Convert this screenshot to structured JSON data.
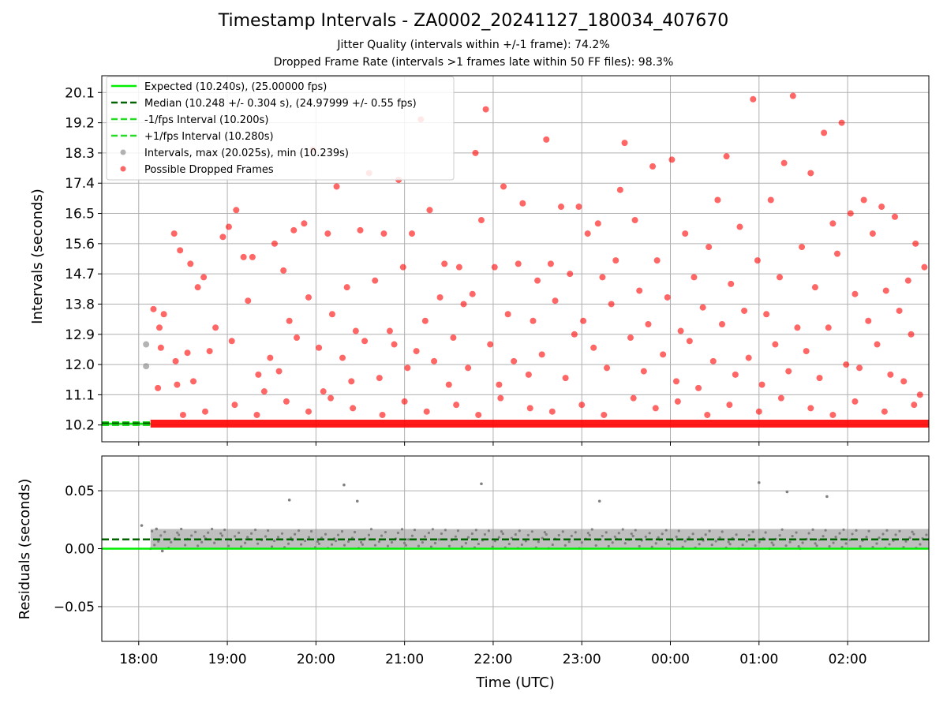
{
  "title": "Timestamp Intervals - ZA0002_20241127_180034_407670",
  "subtitle_1": "Jitter Quality (intervals within +/-1 frame): 74.2%",
  "subtitle_2": "Dropped Frame Rate (intervals >1 frames late within 50 FF files): 98.3%",
  "colors": {
    "expected": "#00ee00",
    "median": "#006400",
    "fps_band": "#22dd22",
    "intervals": "#808080",
    "dropped": "#ff0000",
    "grid": "#b0b0b0"
  },
  "chart_data": [
    {
      "type": "scatter",
      "panel": "top",
      "xlabel": "",
      "ylabel": "Intervals (seconds)",
      "xlim": [
        "17:35",
        "02:55"
      ],
      "ylim": [
        9.7,
        20.6
      ],
      "yticks": [
        "10.2",
        "11.1",
        "12.0",
        "12.9",
        "13.8",
        "14.7",
        "15.6",
        "16.5",
        "17.4",
        "18.3",
        "19.2",
        "20.1"
      ],
      "grid": true,
      "legend_position": "top-left",
      "legend": [
        {
          "label": "Expected (10.240s), (25.00000 fps)",
          "style": "solid-line",
          "color": "#00ee00"
        },
        {
          "label": "Median (10.248 +/- 0.304 s), (24.97999 +/- 0.55 fps)",
          "style": "dashed-line",
          "color": "#006400"
        },
        {
          "label": "-1/fps Interval (10.200s)",
          "style": "dashed-line",
          "color": "#22dd22"
        },
        {
          "label": "+1/fps Interval (10.280s)",
          "style": "dashed-line",
          "color": "#22dd22"
        },
        {
          "label": "Intervals, max (20.025s), min (10.239s)",
          "style": "marker",
          "color": "#808080"
        },
        {
          "label": "Possible Dropped Frames",
          "style": "marker",
          "color": "#ff0000"
        }
      ],
      "reference_lines": {
        "expected": 10.24,
        "median": 10.248,
        "minus_fps": 10.2,
        "plus_fps": 10.28
      },
      "interval_points": [
        {
          "x": "18:05",
          "y": 12.6
        },
        {
          "x": "18:05",
          "y": 11.95
        }
      ],
      "baseline_band": {
        "from": "18:08",
        "to": "02:55",
        "y": 10.24
      },
      "dropped_frames": [
        {
          "x": "18:10",
          "y": 13.65
        },
        {
          "x": "18:13",
          "y": 11.3
        },
        {
          "x": "18:14",
          "y": 13.1
        },
        {
          "x": "18:15",
          "y": 12.5
        },
        {
          "x": "18:17",
          "y": 13.5
        },
        {
          "x": "18:24",
          "y": 15.9
        },
        {
          "x": "18:25",
          "y": 12.1
        },
        {
          "x": "18:26",
          "y": 11.4
        },
        {
          "x": "18:28",
          "y": 15.4
        },
        {
          "x": "18:33",
          "y": 12.35
        },
        {
          "x": "18:35",
          "y": 15.0
        },
        {
          "x": "18:37",
          "y": 11.5
        },
        {
          "x": "18:40",
          "y": 14.3
        },
        {
          "x": "18:44",
          "y": 14.6
        },
        {
          "x": "18:48",
          "y": 12.4
        },
        {
          "x": "18:52",
          "y": 13.1
        },
        {
          "x": "18:57",
          "y": 15.8
        },
        {
          "x": "19:01",
          "y": 16.1
        },
        {
          "x": "19:03",
          "y": 12.7
        },
        {
          "x": "19:06",
          "y": 16.6
        },
        {
          "x": "19:11",
          "y": 15.2
        },
        {
          "x": "19:14",
          "y": 13.9
        },
        {
          "x": "19:17",
          "y": 15.2
        },
        {
          "x": "19:21",
          "y": 11.7
        },
        {
          "x": "19:25",
          "y": 11.2
        },
        {
          "x": "19:29",
          "y": 12.2
        },
        {
          "x": "19:32",
          "y": 15.6
        },
        {
          "x": "19:35",
          "y": 11.8
        },
        {
          "x": "19:38",
          "y": 14.8
        },
        {
          "x": "19:42",
          "y": 13.3
        },
        {
          "x": "19:45",
          "y": 16.0
        },
        {
          "x": "19:47",
          "y": 12.8
        },
        {
          "x": "19:52",
          "y": 16.2
        },
        {
          "x": "19:55",
          "y": 14.0
        },
        {
          "x": "19:58",
          "y": 18.4
        },
        {
          "x": "20:02",
          "y": 12.5
        },
        {
          "x": "20:05",
          "y": 11.2
        },
        {
          "x": "20:08",
          "y": 15.9
        },
        {
          "x": "20:11",
          "y": 13.5
        },
        {
          "x": "20:14",
          "y": 17.3
        },
        {
          "x": "20:18",
          "y": 12.2
        },
        {
          "x": "20:21",
          "y": 14.3
        },
        {
          "x": "20:24",
          "y": 11.5
        },
        {
          "x": "20:27",
          "y": 13.0
        },
        {
          "x": "20:30",
          "y": 16.0
        },
        {
          "x": "20:33",
          "y": 12.7
        },
        {
          "x": "20:36",
          "y": 17.7
        },
        {
          "x": "20:40",
          "y": 14.5
        },
        {
          "x": "20:43",
          "y": 11.6
        },
        {
          "x": "20:46",
          "y": 15.9
        },
        {
          "x": "20:50",
          "y": 13.0
        },
        {
          "x": "20:53",
          "y": 12.6
        },
        {
          "x": "20:56",
          "y": 17.5
        },
        {
          "x": "20:59",
          "y": 14.9
        },
        {
          "x": "21:02",
          "y": 11.9
        },
        {
          "x": "21:05",
          "y": 15.9
        },
        {
          "x": "21:08",
          "y": 12.4
        },
        {
          "x": "21:11",
          "y": 19.3
        },
        {
          "x": "21:14",
          "y": 13.3
        },
        {
          "x": "21:17",
          "y": 16.6
        },
        {
          "x": "21:20",
          "y": 12.1
        },
        {
          "x": "21:24",
          "y": 14.0
        },
        {
          "x": "21:27",
          "y": 15.0
        },
        {
          "x": "21:30",
          "y": 11.4
        },
        {
          "x": "21:33",
          "y": 12.8
        },
        {
          "x": "21:37",
          "y": 14.9
        },
        {
          "x": "21:40",
          "y": 13.8
        },
        {
          "x": "21:43",
          "y": 11.9
        },
        {
          "x": "21:46",
          "y": 14.1
        },
        {
          "x": "21:48",
          "y": 18.3
        },
        {
          "x": "21:52",
          "y": 16.3
        },
        {
          "x": "21:55",
          "y": 19.6
        },
        {
          "x": "21:58",
          "y": 12.6
        },
        {
          "x": "22:01",
          "y": 14.9
        },
        {
          "x": "22:04",
          "y": 11.4
        },
        {
          "x": "22:07",
          "y": 17.3
        },
        {
          "x": "22:10",
          "y": 13.5
        },
        {
          "x": "22:14",
          "y": 12.1
        },
        {
          "x": "22:17",
          "y": 15.0
        },
        {
          "x": "22:20",
          "y": 16.8
        },
        {
          "x": "22:24",
          "y": 11.7
        },
        {
          "x": "22:27",
          "y": 13.3
        },
        {
          "x": "22:30",
          "y": 14.5
        },
        {
          "x": "22:33",
          "y": 12.3
        },
        {
          "x": "22:36",
          "y": 18.7
        },
        {
          "x": "22:39",
          "y": 15.0
        },
        {
          "x": "22:42",
          "y": 13.9
        },
        {
          "x": "22:46",
          "y": 16.7
        },
        {
          "x": "22:49",
          "y": 11.6
        },
        {
          "x": "22:52",
          "y": 14.7
        },
        {
          "x": "22:55",
          "y": 12.9
        },
        {
          "x": "22:58",
          "y": 16.7
        },
        {
          "x": "23:01",
          "y": 13.3
        },
        {
          "x": "23:04",
          "y": 15.9
        },
        {
          "x": "23:08",
          "y": 12.5
        },
        {
          "x": "23:11",
          "y": 16.2
        },
        {
          "x": "23:14",
          "y": 14.6
        },
        {
          "x": "23:17",
          "y": 11.9
        },
        {
          "x": "23:20",
          "y": 13.8
        },
        {
          "x": "23:23",
          "y": 15.1
        },
        {
          "x": "23:26",
          "y": 17.2
        },
        {
          "x": "23:29",
          "y": 18.6
        },
        {
          "x": "23:33",
          "y": 12.8
        },
        {
          "x": "23:36",
          "y": 16.3
        },
        {
          "x": "23:39",
          "y": 14.2
        },
        {
          "x": "23:42",
          "y": 11.8
        },
        {
          "x": "23:45",
          "y": 13.2
        },
        {
          "x": "23:48",
          "y": 17.9
        },
        {
          "x": "23:51",
          "y": 15.1
        },
        {
          "x": "23:55",
          "y": 12.3
        },
        {
          "x": "23:58",
          "y": 14.0
        },
        {
          "x": "00:01",
          "y": 18.1
        },
        {
          "x": "00:04",
          "y": 11.5
        },
        {
          "x": "00:07",
          "y": 13.0
        },
        {
          "x": "00:10",
          "y": 15.9
        },
        {
          "x": "00:13",
          "y": 12.7
        },
        {
          "x": "00:16",
          "y": 14.6
        },
        {
          "x": "00:19",
          "y": 11.3
        },
        {
          "x": "00:22",
          "y": 13.7
        },
        {
          "x": "00:26",
          "y": 15.5
        },
        {
          "x": "00:29",
          "y": 12.1
        },
        {
          "x": "00:32",
          "y": 16.9
        },
        {
          "x": "00:35",
          "y": 13.2
        },
        {
          "x": "00:38",
          "y": 18.2
        },
        {
          "x": "00:41",
          "y": 14.4
        },
        {
          "x": "00:44",
          "y": 11.7
        },
        {
          "x": "00:47",
          "y": 16.1
        },
        {
          "x": "00:50",
          "y": 13.6
        },
        {
          "x": "00:53",
          "y": 12.2
        },
        {
          "x": "00:56",
          "y": 19.9
        },
        {
          "x": "00:59",
          "y": 15.1
        },
        {
          "x": "01:02",
          "y": 11.4
        },
        {
          "x": "01:05",
          "y": 13.5
        },
        {
          "x": "01:08",
          "y": 16.9
        },
        {
          "x": "01:11",
          "y": 12.6
        },
        {
          "x": "01:14",
          "y": 14.6
        },
        {
          "x": "01:17",
          "y": 18.0
        },
        {
          "x": "01:20",
          "y": 11.8
        },
        {
          "x": "01:23",
          "y": 20.0
        },
        {
          "x": "01:26",
          "y": 13.1
        },
        {
          "x": "01:29",
          "y": 15.5
        },
        {
          "x": "01:32",
          "y": 12.4
        },
        {
          "x": "01:35",
          "y": 17.7
        },
        {
          "x": "01:38",
          "y": 14.3
        },
        {
          "x": "01:41",
          "y": 11.6
        },
        {
          "x": "01:44",
          "y": 18.9
        },
        {
          "x": "01:47",
          "y": 13.1
        },
        {
          "x": "01:50",
          "y": 16.2
        },
        {
          "x": "01:53",
          "y": 15.3
        },
        {
          "x": "01:56",
          "y": 19.2
        },
        {
          "x": "01:59",
          "y": 12.0
        },
        {
          "x": "02:02",
          "y": 16.5
        },
        {
          "x": "02:05",
          "y": 14.1
        },
        {
          "x": "02:08",
          "y": 11.9
        },
        {
          "x": "02:11",
          "y": 16.9
        },
        {
          "x": "02:14",
          "y": 13.3
        },
        {
          "x": "02:17",
          "y": 15.9
        },
        {
          "x": "02:20",
          "y": 12.6
        },
        {
          "x": "02:23",
          "y": 16.7
        },
        {
          "x": "02:26",
          "y": 14.2
        },
        {
          "x": "02:29",
          "y": 11.7
        },
        {
          "x": "02:32",
          "y": 16.4
        },
        {
          "x": "02:35",
          "y": 13.6
        },
        {
          "x": "02:38",
          "y": 11.5
        },
        {
          "x": "02:41",
          "y": 14.5
        },
        {
          "x": "02:43",
          "y": 12.9
        },
        {
          "x": "02:46",
          "y": 15.6
        },
        {
          "x": "02:49",
          "y": 11.1
        },
        {
          "x": "02:52",
          "y": 14.9
        },
        {
          "x": "18:30",
          "y": 10.5
        },
        {
          "x": "18:45",
          "y": 10.6
        },
        {
          "x": "19:05",
          "y": 10.8
        },
        {
          "x": "19:20",
          "y": 10.5
        },
        {
          "x": "19:40",
          "y": 10.9
        },
        {
          "x": "19:55",
          "y": 10.6
        },
        {
          "x": "20:10",
          "y": 11.0
        },
        {
          "x": "20:25",
          "y": 10.7
        },
        {
          "x": "20:45",
          "y": 10.5
        },
        {
          "x": "21:00",
          "y": 10.9
        },
        {
          "x": "21:15",
          "y": 10.6
        },
        {
          "x": "21:35",
          "y": 10.8
        },
        {
          "x": "21:50",
          "y": 10.5
        },
        {
          "x": "22:05",
          "y": 11.0
        },
        {
          "x": "22:25",
          "y": 10.7
        },
        {
          "x": "22:40",
          "y": 10.6
        },
        {
          "x": "23:00",
          "y": 10.8
        },
        {
          "x": "23:15",
          "y": 10.5
        },
        {
          "x": "23:35",
          "y": 11.0
        },
        {
          "x": "23:50",
          "y": 10.7
        },
        {
          "x": "00:05",
          "y": 10.9
        },
        {
          "x": "00:25",
          "y": 10.5
        },
        {
          "x": "00:40",
          "y": 10.8
        },
        {
          "x": "01:00",
          "y": 10.6
        },
        {
          "x": "01:15",
          "y": 11.0
        },
        {
          "x": "01:35",
          "y": 10.7
        },
        {
          "x": "01:50",
          "y": 10.5
        },
        {
          "x": "02:05",
          "y": 10.9
        },
        {
          "x": "02:25",
          "y": 10.6
        },
        {
          "x": "02:45",
          "y": 10.8
        }
      ]
    },
    {
      "type": "scatter",
      "panel": "bottom",
      "xlabel": "Time (UTC)",
      "ylabel": "Residuals (seconds)",
      "xticks": [
        "18:00",
        "19:00",
        "20:00",
        "21:00",
        "22:00",
        "23:00",
        "00:00",
        "01:00",
        "02:00"
      ],
      "ylim": [
        -0.08,
        0.08
      ],
      "yticks": [
        "0.05",
        "0.00",
        "−0.05"
      ],
      "grid": true,
      "expected_line": 0.0,
      "median_line": 0.008,
      "residual_band": {
        "from": "18:08",
        "to": "02:55",
        "ymin": 0.0,
        "ymax": 0.017
      },
      "outliers": [
        {
          "x": "18:02",
          "y": 0.02
        },
        {
          "x": "18:12",
          "y": 0.017
        },
        {
          "x": "18:16",
          "y": -0.002
        },
        {
          "x": "19:42",
          "y": 0.042
        },
        {
          "x": "20:19",
          "y": 0.055
        },
        {
          "x": "20:28",
          "y": 0.041
        },
        {
          "x": "21:52",
          "y": 0.056
        },
        {
          "x": "23:12",
          "y": 0.041
        },
        {
          "x": "01:00",
          "y": 0.057
        },
        {
          "x": "01:19",
          "y": 0.049
        },
        {
          "x": "01:46",
          "y": 0.045
        }
      ]
    }
  ]
}
